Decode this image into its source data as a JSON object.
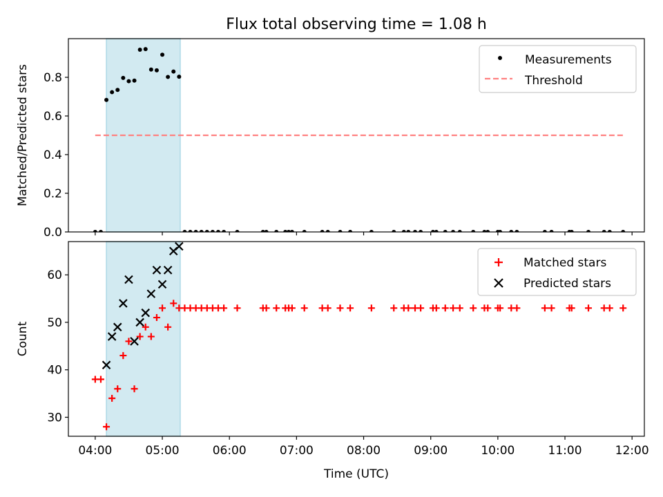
{
  "title": "Flux total observing time = 1.08 h",
  "colors": {
    "measurement": "#000000",
    "threshold": "#ff7f7f",
    "matched": "#ff0000",
    "predicted": "#000000",
    "highlight": "#add8e6"
  },
  "chart_data": [
    {
      "type": "scatter",
      "ylabel": "Matched/Predicted stars",
      "ylim": [
        0,
        1.0
      ],
      "yticks": [
        0.0,
        0.2,
        0.4,
        0.6,
        0.8
      ],
      "ytick_labels": [
        "0.0",
        "0.2",
        "0.4",
        "0.6",
        "0.8"
      ],
      "xlim": [
        "03:36",
        "12:11"
      ],
      "shaded_range": [
        "04:10",
        "05:16"
      ],
      "grid": false,
      "legend": "top-right",
      "legend_entries": [
        "Measurements",
        "Threshold"
      ],
      "threshold": {
        "name": "Threshold",
        "value": 0.5,
        "x_range": [
          "04:00",
          "11:54"
        ]
      },
      "series": [
        {
          "name": "Measurements",
          "points": [
            [
              "04:00",
              0
            ],
            [
              "04:05",
              0
            ],
            [
              "04:10",
              0.683
            ],
            [
              "04:15",
              0.723
            ],
            [
              "04:20",
              0.735
            ],
            [
              "04:25",
              0.797
            ],
            [
              "04:30",
              0.78
            ],
            [
              "04:35",
              0.783
            ],
            [
              "04:40",
              0.943
            ],
            [
              "04:45",
              0.946
            ],
            [
              "04:50",
              0.84
            ],
            [
              "04:55",
              0.836
            ],
            [
              "05:00",
              0.917
            ],
            [
              "05:05",
              0.802
            ],
            [
              "05:10",
              0.83
            ],
            [
              "05:15",
              0.803
            ],
            [
              "05:20",
              0
            ],
            [
              "05:25",
              0
            ],
            [
              "05:30",
              0
            ],
            [
              "05:35",
              0
            ],
            [
              "05:40",
              0
            ],
            [
              "05:45",
              0
            ],
            [
              "05:50",
              0
            ],
            [
              "05:55",
              0
            ],
            [
              "06:07",
              0
            ],
            [
              "06:30",
              0
            ],
            [
              "06:33",
              0
            ],
            [
              "06:42",
              0
            ],
            [
              "06:50",
              0
            ],
            [
              "06:53",
              0
            ],
            [
              "06:56",
              0
            ],
            [
              "07:07",
              0
            ],
            [
              "07:23",
              0
            ],
            [
              "07:28",
              0
            ],
            [
              "07:39",
              0
            ],
            [
              "07:48",
              0
            ],
            [
              "08:07",
              0
            ],
            [
              "08:27",
              0
            ],
            [
              "08:36",
              0
            ],
            [
              "08:40",
              0
            ],
            [
              "08:46",
              0
            ],
            [
              "08:51",
              0
            ],
            [
              "09:02",
              0
            ],
            [
              "09:05",
              0
            ],
            [
              "09:13",
              0
            ],
            [
              "09:20",
              0
            ],
            [
              "09:26",
              0
            ],
            [
              "09:38",
              0
            ],
            [
              "09:48",
              0
            ],
            [
              "09:51",
              0
            ],
            [
              "10:00",
              0
            ],
            [
              "10:02",
              0
            ],
            [
              "10:12",
              0
            ],
            [
              "10:17",
              0
            ],
            [
              "10:42",
              0
            ],
            [
              "10:48",
              0
            ],
            [
              "11:04",
              0
            ],
            [
              "11:06",
              0
            ],
            [
              "11:21",
              0
            ],
            [
              "11:35",
              0
            ],
            [
              "11:40",
              0
            ],
            [
              "11:52",
              0
            ]
          ]
        }
      ]
    },
    {
      "type": "scatter",
      "xlabel": "Time (UTC)",
      "ylabel": "Count",
      "ylim": [
        26,
        67
      ],
      "yticks": [
        30,
        40,
        50,
        60
      ],
      "ytick_labels": [
        "30",
        "40",
        "50",
        "60"
      ],
      "xlim": [
        "03:36",
        "12:11"
      ],
      "xticks": [
        "04:00",
        "05:00",
        "06:00",
        "07:00",
        "08:00",
        "09:00",
        "10:00",
        "11:00",
        "12:00"
      ],
      "shaded_range": [
        "04:10",
        "05:16"
      ],
      "grid": false,
      "legend": "top-right",
      "legend_entries": [
        "Matched stars",
        "Predicted stars"
      ],
      "series": [
        {
          "name": "Matched stars",
          "points": [
            [
              "04:00",
              38
            ],
            [
              "04:05",
              38
            ],
            [
              "04:10",
              28
            ],
            [
              "04:15",
              34
            ],
            [
              "04:20",
              36
            ],
            [
              "04:25",
              43
            ],
            [
              "04:30",
              46
            ],
            [
              "04:35",
              36
            ],
            [
              "04:40",
              47
            ],
            [
              "04:45",
              49
            ],
            [
              "04:50",
              47
            ],
            [
              "04:55",
              51
            ],
            [
              "05:00",
              53
            ],
            [
              "05:05",
              49
            ],
            [
              "05:10",
              54
            ],
            [
              "05:15",
              53
            ],
            [
              "05:20",
              53
            ],
            [
              "05:25",
              53
            ],
            [
              "05:30",
              53
            ],
            [
              "05:35",
              53
            ],
            [
              "05:40",
              53
            ],
            [
              "05:45",
              53
            ],
            [
              "05:50",
              53
            ],
            [
              "05:55",
              53
            ],
            [
              "06:07",
              53
            ],
            [
              "06:30",
              53
            ],
            [
              "06:33",
              53
            ],
            [
              "06:42",
              53
            ],
            [
              "06:50",
              53
            ],
            [
              "06:53",
              53
            ],
            [
              "06:56",
              53
            ],
            [
              "07:07",
              53
            ],
            [
              "07:23",
              53
            ],
            [
              "07:28",
              53
            ],
            [
              "07:39",
              53
            ],
            [
              "07:48",
              53
            ],
            [
              "08:07",
              53
            ],
            [
              "08:27",
              53
            ],
            [
              "08:36",
              53
            ],
            [
              "08:40",
              53
            ],
            [
              "08:46",
              53
            ],
            [
              "08:51",
              53
            ],
            [
              "09:02",
              53
            ],
            [
              "09:05",
              53
            ],
            [
              "09:13",
              53
            ],
            [
              "09:20",
              53
            ],
            [
              "09:26",
              53
            ],
            [
              "09:38",
              53
            ],
            [
              "09:48",
              53
            ],
            [
              "09:51",
              53
            ],
            [
              "10:00",
              53
            ],
            [
              "10:02",
              53
            ],
            [
              "10:12",
              53
            ],
            [
              "10:17",
              53
            ],
            [
              "10:42",
              53
            ],
            [
              "10:48",
              53
            ],
            [
              "11:04",
              53
            ],
            [
              "11:06",
              53
            ],
            [
              "11:21",
              53
            ],
            [
              "11:35",
              53
            ],
            [
              "11:40",
              53
            ],
            [
              "11:52",
              53
            ]
          ]
        },
        {
          "name": "Predicted stars",
          "points": [
            [
              "04:10",
              41
            ],
            [
              "04:15",
              47
            ],
            [
              "04:20",
              49
            ],
            [
              "04:25",
              54
            ],
            [
              "04:30",
              59
            ],
            [
              "04:35",
              46
            ],
            [
              "04:40",
              50
            ],
            [
              "04:45",
              52
            ],
            [
              "04:50",
              56
            ],
            [
              "04:55",
              61
            ],
            [
              "05:00",
              58
            ],
            [
              "05:05",
              61
            ],
            [
              "05:10",
              65
            ],
            [
              "05:15",
              66
            ]
          ]
        }
      ]
    }
  ]
}
